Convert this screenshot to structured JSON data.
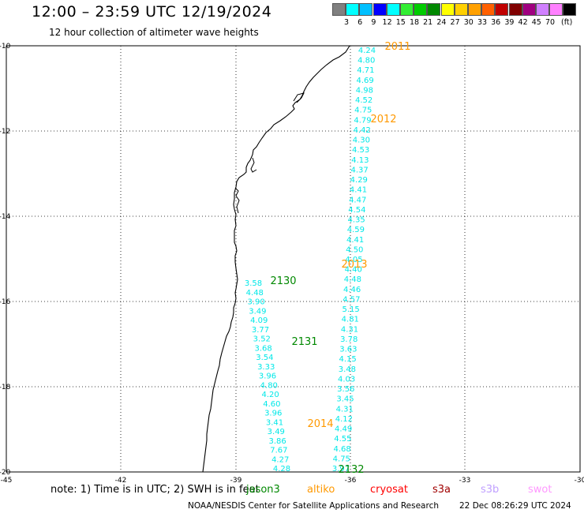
{
  "header": {
    "title": "12:00 – 23:59 UTC 12/19/2024",
    "subtitle": "12 hour collection of altimeter wave heights"
  },
  "legend": {
    "unit": "(ft)",
    "colors": [
      "#808080",
      "#00ffff",
      "#00c0ff",
      "#0000ff",
      "#00ffff",
      "#33ee33",
      "#00cc00",
      "#008800",
      "#ffff00",
      "#ffd000",
      "#ffa000",
      "#ff6000",
      "#c00000",
      "#800000",
      "#a00080",
      "#d080ff",
      "#ff80ff",
      "#000000"
    ],
    "values": [
      "3",
      "6",
      "9",
      "12",
      "15",
      "18",
      "21",
      "24",
      "27",
      "30",
      "33",
      "36",
      "39",
      "42",
      "45",
      "70"
    ]
  },
  "axes": {
    "lon_labels": [
      "-45",
      "-42",
      "-39",
      "-36",
      "-33",
      "-30"
    ],
    "lat_labels": [
      "-10",
      "-12",
      "-14",
      "-16",
      "-18",
      "-20"
    ]
  },
  "tracks": [
    {
      "color": "#00e8e8",
      "values": [
        "4.24",
        "4.80",
        "4.71",
        "4.69",
        "4.98",
        "4.52",
        "4.75",
        "4.79",
        "4.42",
        "4.30",
        "4.53",
        "4.13",
        "4.37",
        "4.29",
        "4.41",
        "4.47",
        "4.54",
        "4.35",
        "4.59",
        "4.41",
        "4.50",
        "4.05",
        "4.40",
        "4.48",
        "4.46",
        "4.57",
        "5.15",
        "4.81",
        "4.31",
        "3.78",
        "3.63",
        "4.15",
        "3.48",
        "4.03",
        "3.56",
        "3.45",
        "4.31",
        "4.12",
        "4.49",
        "4.55",
        "4.68",
        "4.75",
        "3.97"
      ]
    },
    {
      "color": "#00e8e8",
      "values": [
        "3.58",
        "4.48",
        "3.90",
        "3.49",
        "4.09",
        "3.77",
        "3.52",
        "3.68",
        "3.54",
        "3.33",
        "3.96",
        "4.80",
        "4.20",
        "4.60",
        "3.96",
        "3.41",
        "3.49",
        "3.86",
        "7.67",
        "4.27",
        "4.28"
      ]
    }
  ],
  "time_labels": [
    {
      "text": "2011",
      "color": "#ff9900"
    },
    {
      "text": "2012",
      "color": "#ff9900"
    },
    {
      "text": "2013",
      "color": "#ff9900"
    },
    {
      "text": "2130",
      "color": "#008800"
    },
    {
      "text": "2131",
      "color": "#008800"
    },
    {
      "text": "2014",
      "color": "#ff9900"
    },
    {
      "text": "2132",
      "color": "#008800"
    }
  ],
  "notes": {
    "main": "note:  1) Time is in UTC;  2) SWH is in feet",
    "satellites": [
      {
        "name": "jason3",
        "color": "#008800"
      },
      {
        "name": "altiko",
        "color": "#ff9900"
      },
      {
        "name": "cryosat",
        "color": "#ff0000"
      },
      {
        "name": "s3a",
        "color": "#a00000"
      },
      {
        "name": "s3b",
        "color": "#c0a0ff"
      },
      {
        "name": "swot",
        "color": "#ff99ff"
      }
    ]
  },
  "footer": {
    "credit": "NOAA/NESDIS Center for Satellite Applications and Research",
    "timestamp": "22 Dec 08:26:29 UTC 2024"
  }
}
